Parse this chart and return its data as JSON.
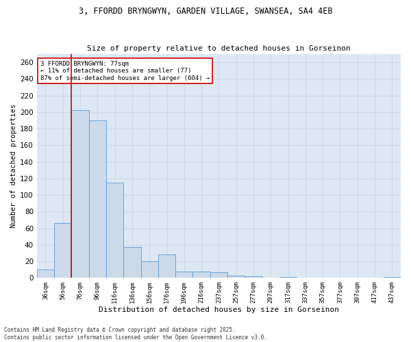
{
  "title_line1": "3, FFORDD BRYNGWYN, GARDEN VILLAGE, SWANSEA, SA4 4EB",
  "title_line2": "Size of property relative to detached houses in Gorseinon",
  "xlabel": "Distribution of detached houses by size in Gorseinon",
  "ylabel": "Number of detached properties",
  "categories": [
    "36sqm",
    "56sqm",
    "76sqm",
    "96sqm",
    "116sqm",
    "136sqm",
    "156sqm",
    "176sqm",
    "196sqm",
    "216sqm",
    "237sqm",
    "257sqm",
    "277sqm",
    "297sqm",
    "317sqm",
    "337sqm",
    "357sqm",
    "377sqm",
    "397sqm",
    "417sqm",
    "437sqm"
  ],
  "values": [
    10,
    66,
    202,
    190,
    115,
    37,
    20,
    28,
    8,
    8,
    7,
    3,
    2,
    0,
    1,
    0,
    0,
    0,
    0,
    0,
    1
  ],
  "bar_color": "#ccd9e8",
  "bar_edge_color": "#5b9bd5",
  "grid_color": "#d0d8e8",
  "background_color": "#dde8f4",
  "vline_color": "#cc0000",
  "vline_x_index": 2,
  "annotation_text": "3 FFORDD BRYNGWYN: 77sqm\n← 11% of detached houses are smaller (77)\n87% of semi-detached houses are larger (604) →",
  "annotation_box_edgecolor": "#cc0000",
  "footer_text": "Contains HM Land Registry data © Crown copyright and database right 2025.\nContains public sector information licensed under the Open Government Licence v3.0.",
  "ylim": [
    0,
    270
  ],
  "yticks": [
    0,
    20,
    40,
    60,
    80,
    100,
    120,
    140,
    160,
    180,
    200,
    220,
    240,
    260
  ]
}
